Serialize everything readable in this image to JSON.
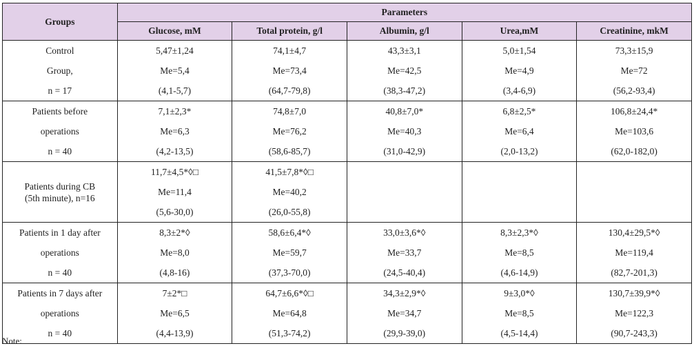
{
  "table": {
    "groups_header": "Groups",
    "parameters_header": "Parameters",
    "columns": [
      "Glucose, mM",
      "Total protein, g/l",
      "Albumin, g/l",
      "Urea,mM",
      "Creatinine, mkM"
    ],
    "header_bg": "#e2d0e8",
    "rows": [
      {
        "group": [
          "Control",
          "Group,",
          "n = 17"
        ],
        "cells": [
          [
            "5,47±1,24",
            "Me=5,4",
            "(4,1-5,7)"
          ],
          [
            "74,1±4,7",
            "Me=73,4",
            "(64,7-79,8)"
          ],
          [
            "43,3±3,1",
            "Me=42,5",
            "(38,3-47,2)"
          ],
          [
            "5,0±1,54",
            "Me=4,9",
            "(3,4-6,9)"
          ],
          [
            "73,3±15,9",
            "Me=72",
            "(56,2-93,4)"
          ]
        ]
      },
      {
        "group": [
          "Patients before",
          "operations",
          "n = 40"
        ],
        "cells": [
          [
            "7,1±2,3*",
            "Me=6,3",
            "(4,2-13,5)"
          ],
          [
            "74,8±7,0",
            "Me=76,2",
            "(58,6-85,7)"
          ],
          [
            "40,8±7,0*",
            "Me=40,3",
            "(31,0-42,9)"
          ],
          [
            "6,8±2,5*",
            "Me=6,4",
            "(2,0-13,2)"
          ],
          [
            "106,8±24,4*",
            "Me=103,6",
            "(62,0-182,0)"
          ]
        ]
      },
      {
        "group": [
          "Patients during CB",
          "(5th minute), n=16"
        ],
        "cells": [
          [
            "11,7±4,5*◊□",
            "Me=11,4",
            "(5,6-30,0)"
          ],
          [
            "41,5±7,8*◊□",
            "Me=40,2",
            "(26,0-55,8)"
          ],
          [],
          [],
          []
        ]
      },
      {
        "group": [
          "Patients in 1 day after",
          "operations",
          "n = 40"
        ],
        "cells": [
          [
            "8,3±2*◊",
            "Me=8,0",
            "(4,8-16)"
          ],
          [
            "58,6±6,4*◊",
            "Me=59,7",
            "(37,3-70,0)"
          ],
          [
            "33,0±3,6*◊",
            "Me=33,7",
            "(24,5-40,4)"
          ],
          [
            "8,3±2,3*◊",
            "Me=8,5",
            "(4,6-14,9)"
          ],
          [
            "130,4±29,5*◊",
            "Me=119,4",
            "(82,7-201,3)"
          ]
        ]
      },
      {
        "group": [
          "Patients in 7 days after",
          "operations",
          "n = 40"
        ],
        "cells": [
          [
            "7±2*□",
            "Me=6,5",
            "(4,4-13,9)"
          ],
          [
            "64,7±6,6*◊□",
            "Me=64,8",
            "(51,3-74,2)"
          ],
          [
            "34,3±2,9*◊",
            "Me=34,7",
            "(29,9-39,0)"
          ],
          [
            "9±3,0*◊",
            "Me=8,5",
            "(4,5-14,4)"
          ],
          [
            "130,7±39,9*◊",
            "Me=122,3",
            "(90,7-243,3)"
          ]
        ]
      }
    ]
  },
  "note_label": "Note:"
}
